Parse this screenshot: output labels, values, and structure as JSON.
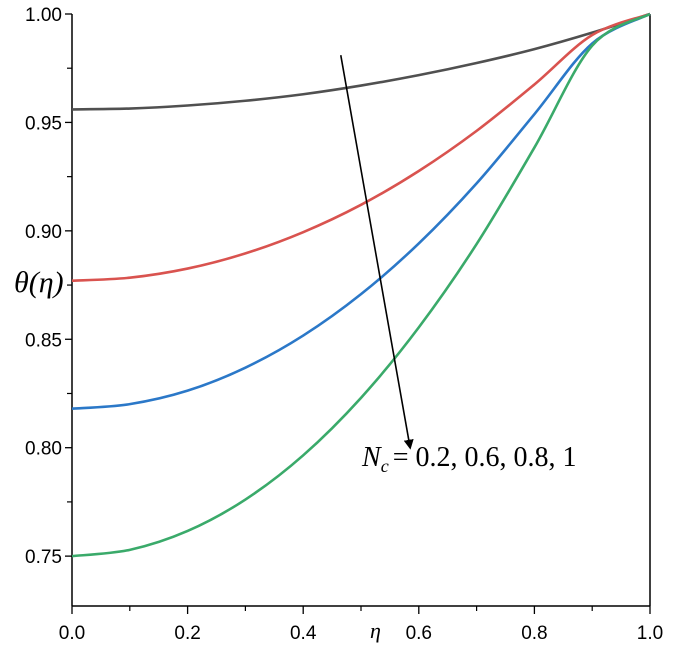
{
  "chart_data": {
    "type": "line",
    "xlabel": "η",
    "ylabel": "θ(η)",
    "xlim": [
      0,
      1
    ],
    "ylim": [
      0.727,
      1.0
    ],
    "x_ticks": [
      "0.0",
      "0.2",
      "0.4",
      "0.6",
      "0.8",
      "1.0"
    ],
    "y_ticks": [
      "0.75",
      "0.80",
      "0.85",
      "0.90",
      "0.95",
      "1.00"
    ],
    "grid": false,
    "x": [
      0,
      0.1,
      0.2,
      0.3,
      0.4,
      0.5,
      0.6,
      0.7,
      0.8,
      0.9,
      1.0
    ],
    "series": [
      {
        "color": "#505050",
        "values": [
          0.956,
          0.9564,
          0.9578,
          0.96,
          0.963,
          0.967,
          0.9718,
          0.9774,
          0.9838,
          0.9914,
          1.0
        ]
      },
      {
        "color": "#d9534f",
        "values": [
          0.877,
          0.8784,
          0.8826,
          0.8896,
          0.8994,
          0.912,
          0.9276,
          0.9461,
          0.9675,
          0.9903,
          1.0
        ]
      },
      {
        "color": "#2b78c8",
        "values": [
          0.818,
          0.8201,
          0.8263,
          0.8369,
          0.8517,
          0.8708,
          0.8942,
          0.9219,
          0.9538,
          0.9864,
          1.0
        ]
      },
      {
        "color": "#3aaa6a",
        "values": [
          0.75,
          0.7529,
          0.7616,
          0.7761,
          0.7965,
          0.823,
          0.8555,
          0.8939,
          0.9384,
          0.9854,
          1.0
        ]
      }
    ],
    "annotation": {
      "symbol": "N",
      "subscript": "c",
      "text": "= 0.2, 0.6, 0.8, 1",
      "arrow_from": [
        0.465,
        0.981
      ],
      "arrow_to": [
        0.585,
        0.8
      ]
    }
  }
}
